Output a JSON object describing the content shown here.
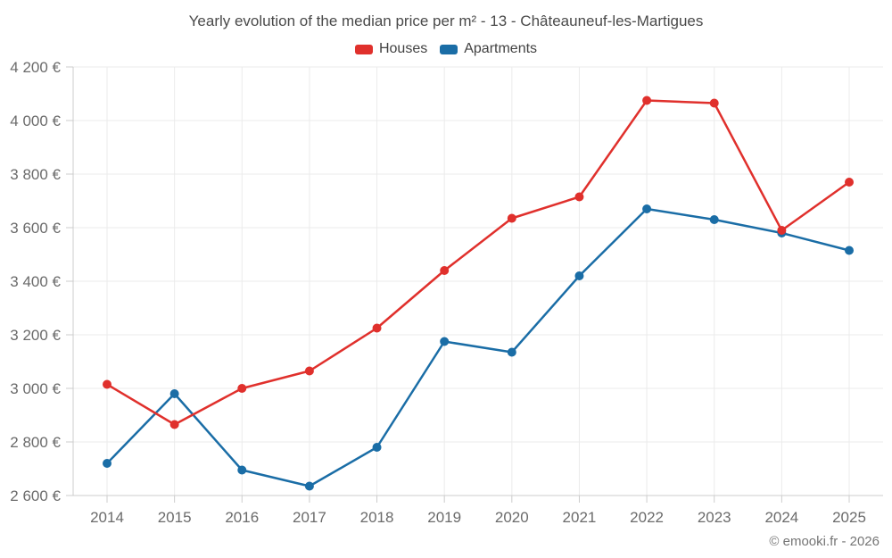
{
  "title": "Yearly evolution of the median price per m² - 13 - Châteauneuf-les-Martigues",
  "attribution": "© emooki.fr - 2026",
  "colors": {
    "houses": "#e0302c",
    "apartments": "#1a6da6",
    "grid": "#ebebeb",
    "axis": "#cccccc",
    "tick_text": "#6b6b6b"
  },
  "chart_data": {
    "type": "line",
    "title": "Yearly evolution of the median price per m² - 13 - Châteauneuf-les-Martigues",
    "categories": [
      "2014",
      "2015",
      "2016",
      "2017",
      "2018",
      "2019",
      "2020",
      "2021",
      "2022",
      "2023",
      "2024",
      "2025"
    ],
    "series": [
      {
        "name": "Houses",
        "color": "#e0302c",
        "values": [
          3015,
          2865,
          3000,
          3065,
          3225,
          3440,
          3635,
          3715,
          4075,
          4065,
          3590,
          3770
        ]
      },
      {
        "name": "Apartments",
        "color": "#1a6da6",
        "values": [
          2720,
          2980,
          2695,
          2635,
          2780,
          3175,
          3135,
          3420,
          3670,
          3630,
          3580,
          3515
        ]
      }
    ],
    "xlabel": "",
    "ylabel": "",
    "ylim": [
      2600,
      4200
    ],
    "y_ticks": [
      2600,
      2800,
      3000,
      3200,
      3400,
      3600,
      3800,
      4000,
      4200
    ],
    "y_tick_labels": [
      "2 600 €",
      "2 800 €",
      "3 000 €",
      "3 200 €",
      "3 400 €",
      "3 600 €",
      "3 800 €",
      "4 000 €",
      "4 200 €"
    ],
    "grid": true,
    "legend_position": "top",
    "currency": "€"
  }
}
